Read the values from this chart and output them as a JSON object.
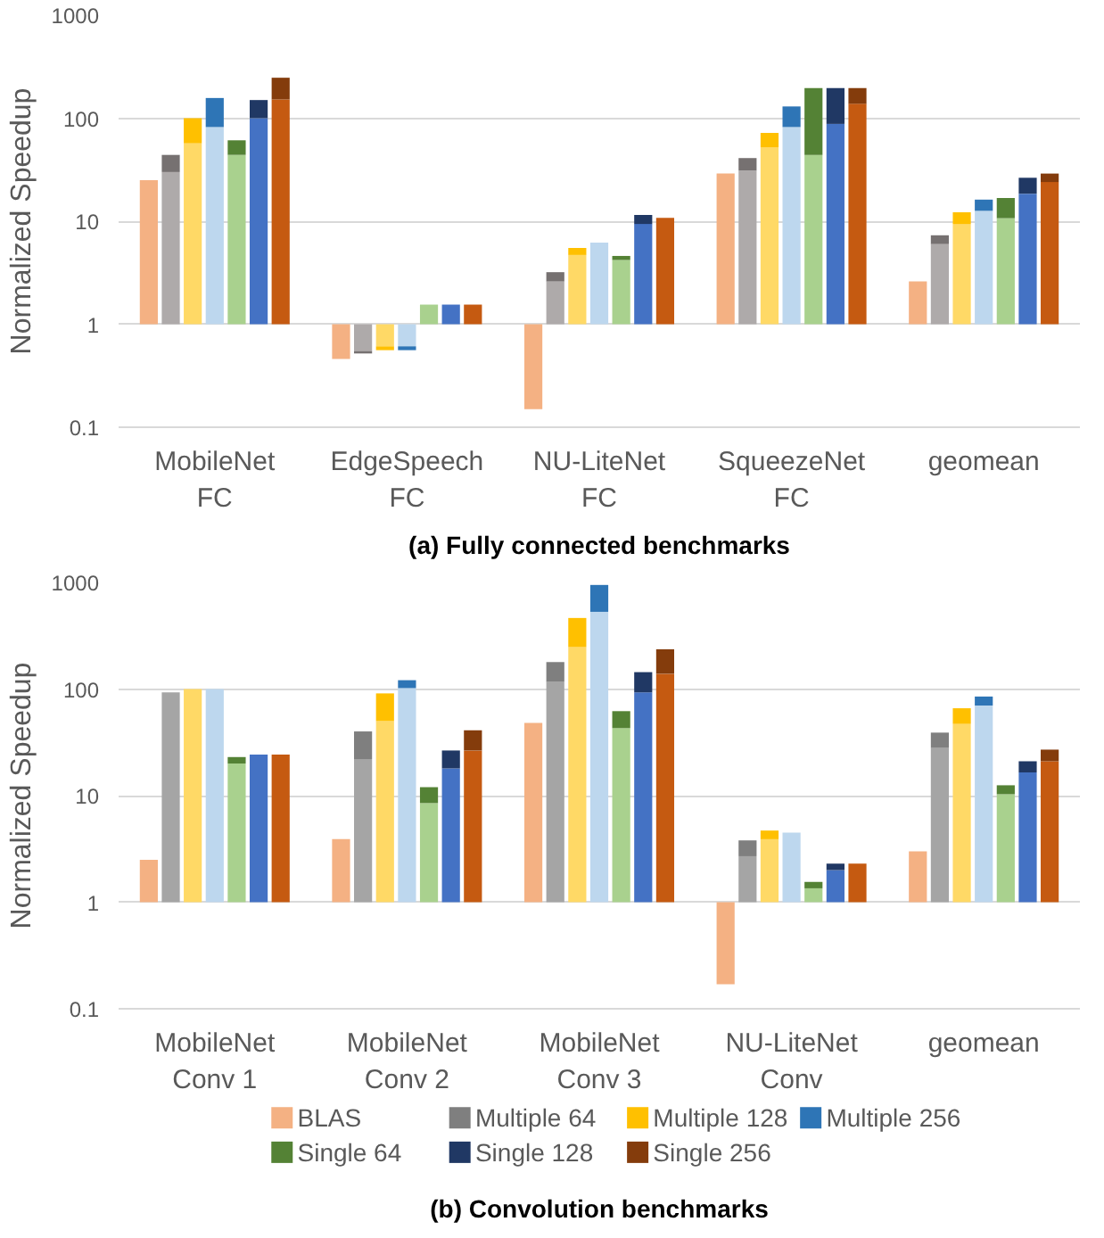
{
  "chart_data": [
    {
      "type": "bar",
      "title": "(a) Fully connected benchmarks",
      "ylabel": "Normalized Speedup",
      "categories": [
        "MobileNet\nFC",
        "EdgeSpeech\nFC",
        "NU-LiteNet\nFC",
        "SqueezeNet\nFC",
        "geomean"
      ],
      "log": "y",
      "ylim": [
        0.1,
        1000
      ],
      "yticks": [
        0.1,
        1,
        10,
        100,
        1000
      ],
      "grid": "y",
      "series": [
        {
          "color": "#f4b183",
          "base": [
            1,
            1,
            1,
            1,
            1
          ],
          "values": [
            24,
            -0.54,
            -0.85,
            28,
            1.6
          ]
        },
        {
          "color": "#aeaaaa",
          "base": [
            1,
            1,
            1,
            1,
            1
          ],
          "values": [
            29,
            -0.45,
            1.6,
            30,
            5.0
          ]
        },
        {
          "color": "#767171",
          "base": [
            30,
            0.55,
            2.6,
            31,
            6.0
          ],
          "values": [
            14,
            -0.03,
            0.6,
            10,
            1.3
          ]
        },
        {
          "color": "#ffd966",
          "base": [
            1,
            1,
            1,
            1,
            1
          ],
          "values": [
            56,
            -0.39,
            3.7,
            51,
            8.4
          ]
        },
        {
          "color": "#ffc000",
          "base": [
            57,
            0.61,
            4.7,
            52,
            9.4
          ],
          "values": [
            43,
            -0.05,
            0.8,
            20,
            2.8
          ]
        },
        {
          "color": "#bdd7ee",
          "base": [
            1,
            1,
            1,
            1,
            1
          ],
          "values": [
            81,
            -0.39,
            5.2,
            81,
            11.6
          ]
        },
        {
          "color": "#2e75b6",
          "base": [
            82,
            0.61,
            null,
            82,
            12.6
          ],
          "values": [
            75,
            -0.05,
            null,
            48,
            3.6
          ]
        },
        {
          "color": "#a9d18e",
          "base": [
            1,
            1,
            1,
            1,
            1
          ],
          "values": [
            43,
            0.55,
            3.2,
            43,
            9.7
          ]
        },
        {
          "color": "#548235",
          "base": [
            44,
            null,
            4.2,
            44,
            10.7
          ],
          "values": [
            17,
            null,
            0.4,
            152,
            6.1
          ]
        },
        {
          "color": "#4472c4",
          "base": [
            1,
            1,
            1,
            1,
            1
          ],
          "values": [
            99,
            0.55,
            8.4,
            87,
            17.5
          ]
        },
        {
          "color": "#203864",
          "base": [
            100,
            null,
            9.4,
            88,
            18.5
          ],
          "values": [
            50,
            null,
            2.1,
            108,
            7.9
          ]
        },
        {
          "color": "#c55a11",
          "base": [
            1,
            1,
            1,
            1,
            1
          ],
          "values": [
            151,
            0.55,
            9.8,
            137,
            23
          ]
        },
        {
          "color": "#843c0c",
          "base": [
            152,
            null,
            null,
            138,
            24
          ],
          "values": [
            95,
            null,
            null,
            58,
            5
          ]
        }
      ]
    },
    {
      "type": "bar",
      "title": "(b) Convolution benchmarks",
      "ylabel": "Normalized Speedup",
      "categories": [
        "MobileNet\nConv 1",
        "MobileNet\nConv 2",
        "MobileNet\nConv 3",
        "NU-LiteNet\nConv",
        "geomean"
      ],
      "log": "y",
      "ylim": [
        0.1,
        1000
      ],
      "yticks": [
        0.1,
        1,
        10,
        100,
        1000
      ],
      "grid": "y",
      "legend": "bottom",
      "series": [
        {
          "name": "BLAS",
          "color": "#f4b183",
          "base": [
            1,
            1,
            1,
            1,
            1
          ],
          "values": [
            1.5,
            2.9,
            47,
            -0.83,
            2.0
          ]
        },
        {
          "color": "#a5a5a5",
          "base": [
            1,
            1,
            1,
            1,
            1
          ],
          "values": [
            92,
            21,
            116,
            1.7,
            27
          ]
        },
        {
          "name": "Multiple 64",
          "color": "#7f7f7f",
          "base": [
            null,
            22,
            117,
            2.7,
            28
          ],
          "values": [
            null,
            18,
            62,
            1.1,
            11
          ]
        },
        {
          "color": "#ffd966",
          "base": [
            1,
            1,
            1,
            1,
            1
          ],
          "values": [
            99,
            49,
            247,
            2.9,
            46
          ]
        },
        {
          "name": "Multiple 128",
          "color": "#ffc000",
          "base": [
            null,
            50,
            248,
            3.9,
            47
          ],
          "values": [
            null,
            41,
            216,
            0.8,
            19
          ]
        },
        {
          "color": "#bdd7ee",
          "base": [
            1,
            1,
            1,
            1,
            1
          ],
          "values": [
            99,
            101,
            529,
            3.5,
            69
          ]
        },
        {
          "name": "Multiple 256",
          "color": "#2e75b6",
          "base": [
            null,
            102,
            530,
            null,
            70
          ],
          "values": [
            null,
            19,
            417,
            null,
            15
          ]
        },
        {
          "color": "#a9d18e",
          "base": [
            1,
            1,
            1,
            1,
            1
          ],
          "values": [
            19,
            7.5,
            42,
            0.35,
            9.3
          ]
        },
        {
          "name": "Single 64",
          "color": "#548235",
          "base": [
            20,
            8.5,
            43,
            1.35,
            10.3
          ],
          "values": [
            3,
            3.5,
            19,
            0.2,
            2.2
          ]
        },
        {
          "color": "#4472c4",
          "base": [
            1,
            1,
            1,
            1,
            1
          ],
          "values": [
            23.3,
            17,
            92,
            1.0,
            15.5
          ]
        },
        {
          "name": "Single 128",
          "color": "#203864",
          "base": [
            null,
            18,
            93,
            2.0,
            16.5
          ],
          "values": [
            null,
            8.5,
            51,
            0.3,
            4.5
          ]
        },
        {
          "color": "#c55a11",
          "base": [
            1,
            1,
            1,
            1,
            1
          ],
          "values": [
            23.3,
            25.5,
            138,
            1.3,
            20
          ]
        },
        {
          "name": "Single 256",
          "color": "#843c0c",
          "base": [
            null,
            26.5,
            139,
            null,
            21
          ],
          "values": [
            null,
            14.5,
            97,
            null,
            6
          ]
        }
      ]
    }
  ]
}
